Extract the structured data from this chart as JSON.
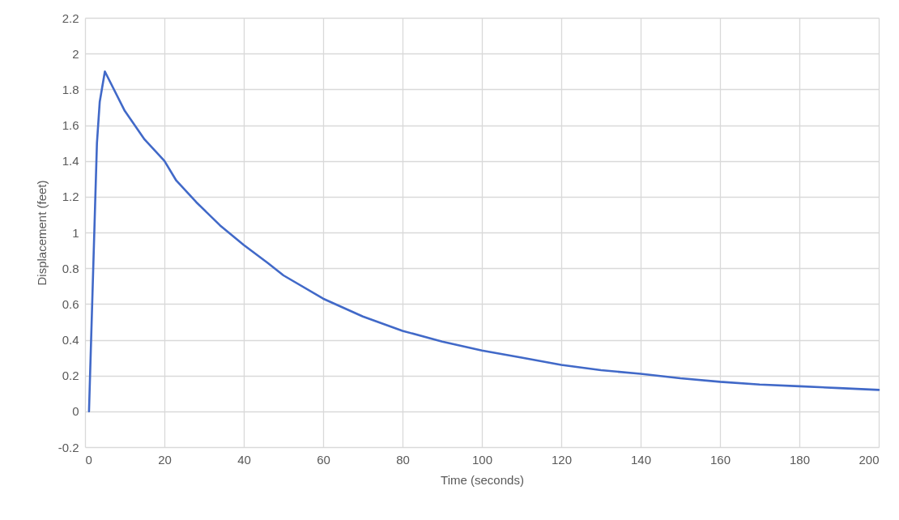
{
  "chart_data": {
    "type": "line",
    "xlabel": "Time (seconds)",
    "ylabel": "Displacement (feet)",
    "x": [
      1,
      3,
      3.7,
      5,
      10,
      15,
      20,
      23,
      28,
      34,
      40,
      46,
      50,
      60,
      70,
      80,
      90,
      100,
      110,
      120,
      130,
      140,
      150,
      160,
      170,
      180,
      190,
      200
    ],
    "series": [
      {
        "color": "#4169c8",
        "values": [
          0,
          1.5,
          1.73,
          1.9,
          1.68,
          1.52,
          1.4,
          1.29,
          1.17,
          1.04,
          0.93,
          0.83,
          0.76,
          0.63,
          0.53,
          0.45,
          0.39,
          0.34,
          0.3,
          0.26,
          0.23,
          0.21,
          0.185,
          0.165,
          0.15,
          0.14,
          0.13,
          0.12
        ]
      }
    ],
    "xlim": [
      0,
      200
    ],
    "ylim": [
      -0.2,
      2.2
    ],
    "xticks": [
      0,
      20,
      40,
      60,
      80,
      100,
      120,
      140,
      160,
      180,
      200
    ],
    "yticks": [
      -0.2,
      0,
      0.2,
      0.4,
      0.6,
      0.8,
      1,
      1.2,
      1.4,
      1.6,
      1.8,
      2,
      2.2
    ],
    "grid": true
  }
}
